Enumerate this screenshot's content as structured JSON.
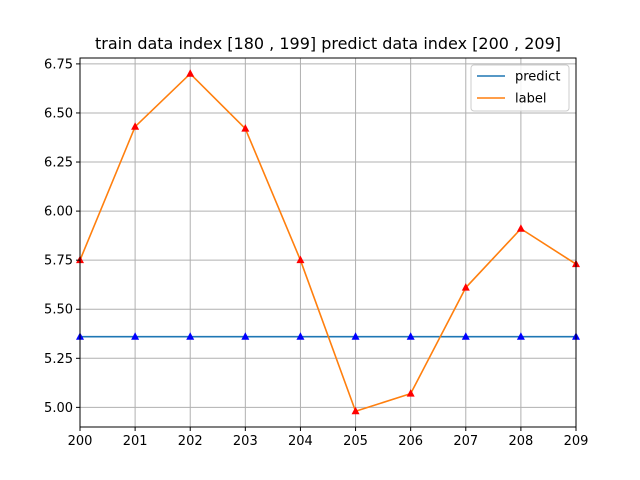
{
  "chart_data": {
    "type": "line",
    "title": "train data index [180 , 199]    predict data index [200 , 209]",
    "xlabel": "",
    "ylabel": "",
    "x": [
      200,
      201,
      202,
      203,
      204,
      205,
      206,
      207,
      208,
      209
    ],
    "xlim": [
      200,
      209
    ],
    "ylim": [
      4.9,
      6.78
    ],
    "x_ticks": [
      "200",
      "201",
      "202",
      "203",
      "204",
      "205",
      "206",
      "207",
      "208",
      "209"
    ],
    "y_ticks": [
      5.0,
      5.25,
      5.5,
      5.75,
      6.0,
      6.25,
      6.5,
      6.75
    ],
    "y_tick_labels": [
      "5.00",
      "5.25",
      "5.50",
      "5.75",
      "6.00",
      "6.25",
      "6.50",
      "6.75"
    ],
    "grid": true,
    "legend_position": "top-right",
    "series": [
      {
        "name": "predict",
        "color": "#1f77b4",
        "marker": "triangle-up",
        "marker_color": "#0000ff",
        "values": [
          5.36,
          5.36,
          5.36,
          5.36,
          5.36,
          5.36,
          5.36,
          5.36,
          5.36,
          5.36
        ]
      },
      {
        "name": "label",
        "color": "#ff7f0e",
        "marker": "triangle-up",
        "marker_color": "#ff0000",
        "values": [
          5.75,
          6.43,
          6.7,
          6.42,
          5.75,
          4.98,
          5.07,
          5.61,
          5.91,
          5.73
        ]
      }
    ]
  }
}
